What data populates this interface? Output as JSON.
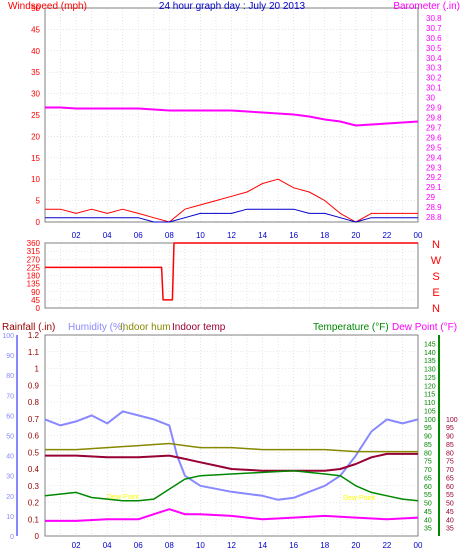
{
  "chart_data": [
    {
      "type": "line",
      "title": "24 hour graph day : July 20 2013",
      "ylabel_left": "Windspeed (mph)",
      "ylabel_right": "Barometer (.in)",
      "x_ticks": [
        "02",
        "04",
        "06",
        "08",
        "10",
        "12",
        "14",
        "16",
        "18",
        "20",
        "22",
        "00"
      ],
      "xlim_hours": [
        0,
        24
      ],
      "ylim_left": [
        0,
        50
      ],
      "yticks_left": [
        0,
        5,
        10,
        15,
        20,
        25,
        30,
        35,
        40,
        45,
        50
      ],
      "ylim_right": [
        28.75,
        30.9
      ],
      "yticks_right": [
        28.8,
        28.9,
        29,
        29.1,
        29.2,
        29.3,
        29.4,
        29.5,
        29.6,
        29.7,
        29.8,
        29.9,
        30,
        30.1,
        30.2,
        30.3,
        30.4,
        30.5,
        30.6,
        30.7,
        30.8
      ],
      "barometer": {
        "hours": [
          0,
          1,
          2,
          3,
          4,
          5,
          6,
          7,
          8,
          9,
          10,
          11,
          12,
          13,
          14,
          15,
          16,
          17,
          18,
          19,
          20,
          21,
          22,
          23,
          24
        ],
        "values": [
          29.9,
          29.9,
          29.89,
          29.89,
          29.89,
          29.89,
          29.89,
          29.88,
          29.87,
          29.87,
          29.87,
          29.87,
          29.87,
          29.86,
          29.85,
          29.84,
          29.83,
          29.81,
          29.78,
          29.76,
          29.72,
          29.73,
          29.74,
          29.75,
          29.76
        ]
      },
      "gust_mph": {
        "hours": [
          0,
          1,
          2,
          3,
          4,
          5,
          6,
          7,
          8,
          9,
          10,
          11,
          12,
          13,
          14,
          15,
          16,
          17,
          18,
          19,
          20,
          21,
          22,
          23,
          24
        ],
        "values": [
          3,
          3,
          2,
          3,
          2,
          3,
          2,
          1,
          0,
          3,
          4,
          5,
          6,
          7,
          9,
          10,
          8,
          7,
          5,
          2,
          0,
          2,
          2,
          2,
          2
        ]
      },
      "avg_mph": {
        "hours": [
          0,
          1,
          2,
          3,
          4,
          5,
          6,
          7,
          8,
          9,
          10,
          11,
          12,
          13,
          14,
          15,
          16,
          17,
          18,
          19,
          20,
          21,
          22,
          23,
          24
        ],
        "values": [
          1,
          1,
          1,
          1,
          1,
          1,
          1,
          0,
          0,
          1,
          2,
          2,
          2,
          3,
          3,
          3,
          3,
          2,
          2,
          1,
          0,
          1,
          1,
          1,
          1
        ]
      },
      "colors": {
        "gust": "#ff0000",
        "avg": "#0000cc",
        "barometer": "#ff00ff",
        "left_axis": "#ff0000",
        "right_axis": "#ff00ff",
        "title": "#0000cc"
      }
    },
    {
      "type": "line",
      "ylim": [
        0,
        360
      ],
      "yticks": [
        0,
        45,
        90,
        135,
        180,
        225,
        270,
        315,
        360
      ],
      "dir_letters": [
        "N",
        "W",
        "S",
        "E",
        "N"
      ],
      "wind_direction_deg": {
        "hours": [
          0,
          7.5,
          7.6,
          8.2,
          8.3,
          19.2,
          19.3,
          24
        ],
        "values": [
          225,
          225,
          45,
          45,
          360,
          360,
          360,
          360
        ]
      },
      "color": "#ff0000"
    },
    {
      "type": "line",
      "labels": {
        "rainfall": "Rainfall (.in)",
        "humidity": "Humidity (%)",
        "indoor_hum": "Indoor hum",
        "indoor_temp": "Indoor temp",
        "temperature": "Temperature (°F)",
        "dew_point": "Dew Point (°F)"
      },
      "ylim_rain": [
        0,
        1.2
      ],
      "yticks_rain": [
        0,
        0.1,
        0.2,
        0.3,
        0.4,
        0.5,
        0.6,
        0.7,
        0.8,
        0.9,
        1,
        1.1,
        1.2
      ],
      "ylim_humidity": [
        0,
        100
      ],
      "yticks_humidity": [
        0,
        10,
        20,
        30,
        40,
        50,
        60,
        70,
        80,
        90,
        100
      ],
      "ylim_temp": [
        30,
        150
      ],
      "yticks_temp": [
        35,
        40,
        45,
        50,
        55,
        60,
        65,
        70,
        75,
        80,
        85,
        90,
        95,
        100,
        105,
        110,
        115,
        120,
        125,
        130,
        135,
        140,
        145
      ],
      "yticks_dew": [
        35,
        40,
        45,
        50,
        55,
        60,
        65,
        70,
        75,
        80,
        85,
        90,
        95,
        100
      ],
      "annotations": [
        "Dew Point",
        "Dew Point"
      ],
      "humidity": {
        "hours": [
          0,
          1,
          2,
          3,
          4,
          5,
          6,
          7,
          8,
          8.5,
          9,
          10,
          12,
          14,
          15,
          16,
          17,
          18,
          19,
          20,
          21,
          22,
          23,
          24
        ],
        "values": [
          58,
          55,
          57,
          60,
          56,
          62,
          60,
          58,
          55,
          40,
          30,
          25,
          22,
          20,
          18,
          19,
          22,
          25,
          30,
          40,
          52,
          58,
          56,
          58
        ]
      },
      "indoor_hum": {
        "hours": [
          0,
          2,
          4,
          6,
          8,
          9,
          10,
          12,
          14,
          16,
          18,
          20,
          22,
          24
        ],
        "values": [
          43,
          43,
          44,
          45,
          46,
          45,
          44,
          44,
          43,
          43,
          43,
          42,
          42,
          42
        ]
      },
      "indoor_temp": {
        "hours": [
          0,
          2,
          4,
          6,
          8,
          9,
          10,
          11,
          12,
          14,
          16,
          18,
          19,
          20,
          21,
          22,
          24
        ],
        "values": [
          78,
          78,
          77,
          77,
          78,
          76,
          74,
          72,
          70,
          69,
          69,
          69,
          70,
          73,
          77,
          79,
          79
        ]
      },
      "temperature": {
        "hours": [
          0,
          2,
          3,
          4,
          5,
          6,
          7,
          8,
          9,
          10,
          12,
          14,
          16,
          18,
          19,
          20,
          21,
          22,
          23,
          24
        ],
        "values": [
          54,
          56,
          53,
          52,
          51,
          51,
          52,
          58,
          64,
          66,
          67,
          68,
          69,
          67,
          66,
          60,
          56,
          54,
          52,
          51
        ]
      },
      "dew_point": {
        "hours": [
          0,
          2,
          4,
          6,
          7,
          8,
          9,
          10,
          12,
          14,
          16,
          18,
          20,
          22,
          24
        ],
        "values": [
          39,
          39,
          40,
          40,
          43,
          46,
          43,
          43,
          42,
          40,
          41,
          42,
          41,
          40,
          41
        ]
      },
      "colors": {
        "rain": "#990000",
        "humidity": "#8888ff",
        "indoor_hum": "#888800",
        "indoor_temp": "#990033",
        "temperature": "#008800",
        "dew_point": "#ff00ff",
        "annotation": "#ffff00"
      }
    }
  ]
}
